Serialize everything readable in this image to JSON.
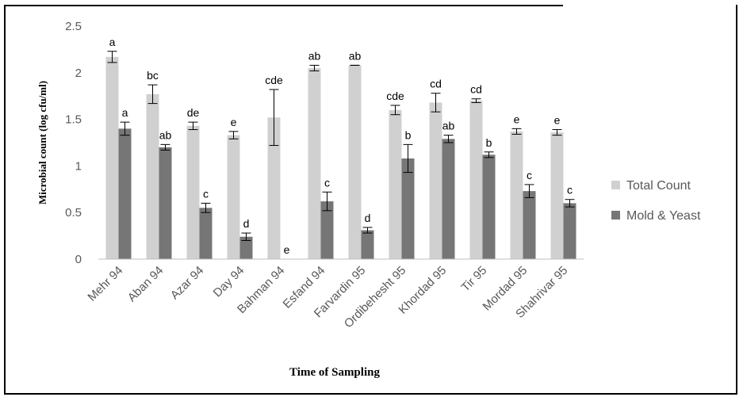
{
  "chart_data": {
    "type": "bar",
    "title": "",
    "xlabel": "Time of Sampling",
    "ylabel": "Microbial count (log cfu/ml)",
    "ylim": [
      0,
      2.5
    ],
    "yticks": [
      "0",
      "0.5",
      "1",
      "1.5",
      "2",
      "2.5"
    ],
    "grid": false,
    "legend_position": "right",
    "categories": [
      "Mehr 94",
      "Aban 94",
      "Azar 94",
      "Day 94",
      "Bahman 94",
      "Esfand 94",
      "Farvardin 95",
      "Ordibehesht 95",
      "Khordad 95",
      "Tir 95",
      "Mordad 95",
      "Shahrivar 95"
    ],
    "series": [
      {
        "name": "Total Count",
        "color": "#d0d0d0",
        "values": [
          2.17,
          1.77,
          1.43,
          1.33,
          1.52,
          2.05,
          2.08,
          1.6,
          1.68,
          1.7,
          1.37,
          1.36
        ],
        "errors": [
          0.06,
          0.1,
          0.04,
          0.04,
          0.3,
          0.03,
          0.0,
          0.05,
          0.1,
          0.02,
          0.03,
          0.03
        ],
        "labels": [
          "a",
          "bc",
          "de",
          "e",
          "cde",
          "ab",
          "ab",
          "cde",
          "cd",
          "cd",
          "e",
          "e"
        ]
      },
      {
        "name": "Mold & Yeast",
        "color": "#767676",
        "values": [
          1.4,
          1.2,
          0.55,
          0.24,
          0.0,
          0.62,
          0.31,
          1.08,
          1.29,
          1.12,
          0.73,
          0.6
        ],
        "errors": [
          0.07,
          0.03,
          0.05,
          0.04,
          0.0,
          0.1,
          0.03,
          0.15,
          0.04,
          0.03,
          0.07,
          0.04
        ],
        "labels": [
          "a",
          "ab",
          "c",
          "d",
          "e",
          "c",
          "d",
          "b",
          "ab",
          "b",
          "c",
          "c"
        ]
      }
    ]
  }
}
